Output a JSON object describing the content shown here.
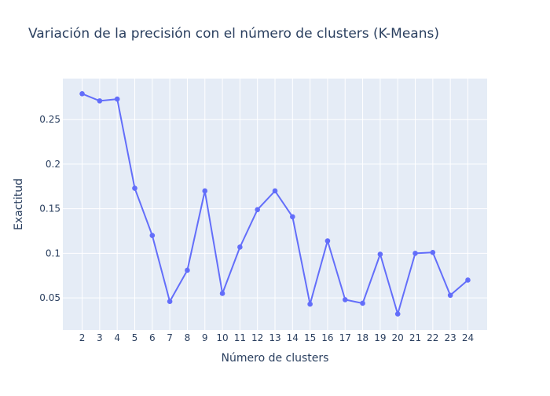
{
  "chart_data": {
    "type": "line",
    "title": "Variación de la precisión con el número de clusters (K-Means)",
    "xlabel": "Número de clusters",
    "ylabel": "Exactitud",
    "x": [
      2,
      3,
      4,
      5,
      6,
      7,
      8,
      9,
      10,
      11,
      12,
      13,
      14,
      15,
      16,
      17,
      18,
      19,
      20,
      21,
      22,
      23,
      24
    ],
    "series": [
      {
        "values": [
          0.279,
          0.271,
          0.273,
          0.173,
          0.12,
          0.046,
          0.081,
          0.17,
          0.055,
          0.107,
          0.149,
          0.17,
          0.141,
          0.043,
          0.114,
          0.048,
          0.044,
          0.099,
          0.032,
          0.1,
          0.101,
          0.053,
          0.07
        ]
      }
    ],
    "xticks": [
      "2",
      "3",
      "4",
      "5",
      "6",
      "7",
      "8",
      "9",
      "10",
      "11",
      "12",
      "13",
      "14",
      "15",
      "16",
      "17",
      "18",
      "19",
      "20",
      "21",
      "22",
      "23",
      "24"
    ],
    "yticks": [
      0.05,
      0.1,
      0.15,
      0.2,
      0.25
    ],
    "ytick_labels": [
      "0.05",
      "0.1",
      "0.15",
      "0.2",
      "0.25"
    ],
    "xlim": [
      0.9,
      25.1
    ],
    "ylim": [
      0.014,
      0.296
    ],
    "grid": true,
    "colors": {
      "line": "#636efa",
      "plot_bg": "#e5ecf6",
      "grid": "#ffffff",
      "text": "#2a3f5f"
    }
  }
}
